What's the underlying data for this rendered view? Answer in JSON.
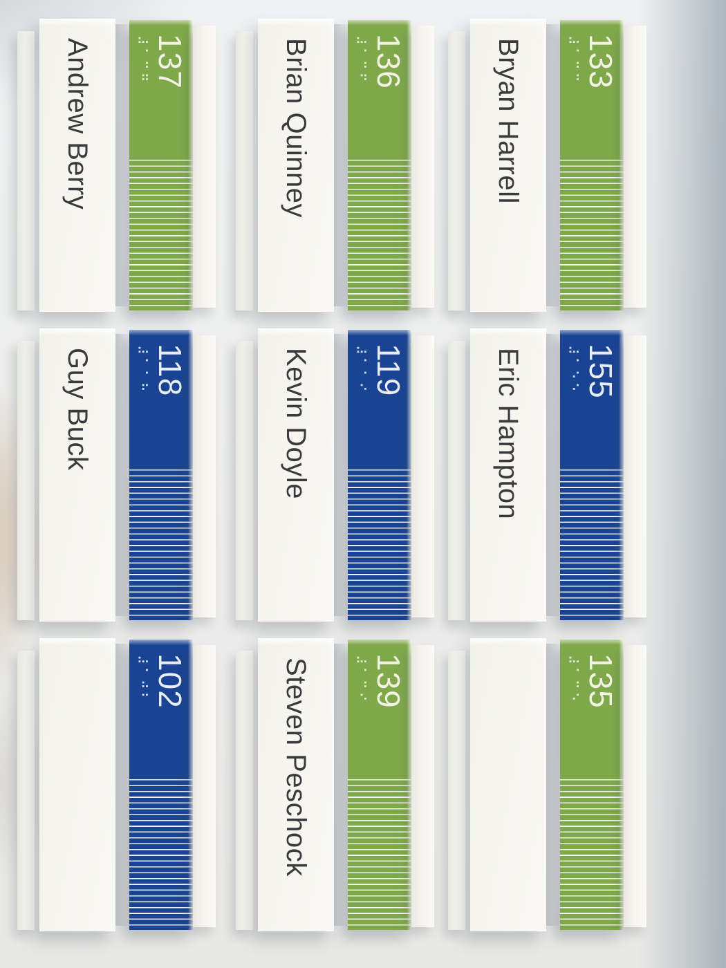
{
  "colors": {
    "stripe_green": "#7fa84b",
    "stripe_blue": "#1a4493",
    "number_text_on_green": "#f3f2e4",
    "number_text_on_blue": "#e9edf4",
    "name_text": "#3a3a3c",
    "plate_white": "#f7f6f1",
    "wall": "#ebecec",
    "wall_shadow_band": "#8a96a3"
  },
  "signs": [
    {
      "name": "Andrew Berry",
      "number": "137",
      "braille": "⠼⠁⠉⠛",
      "color": "green"
    },
    {
      "name": "Brian Quinney",
      "number": "136",
      "braille": "⠼⠁⠉⠋",
      "color": "green"
    },
    {
      "name": "Bryan Harrell",
      "number": "133",
      "braille": "⠼⠁⠉⠉",
      "color": "green"
    },
    {
      "name": "Guy Buck",
      "number": "118",
      "braille": "⠼⠁⠁⠓",
      "color": "blue"
    },
    {
      "name": "Kevin Doyle",
      "number": "119",
      "braille": "⠼⠁⠁⠊",
      "color": "blue"
    },
    {
      "name": "Eric Hampton",
      "number": "155",
      "braille": "⠼⠁⠑⠑",
      "color": "blue"
    },
    {
      "name": "",
      "number": "102",
      "braille": "⠼⠁⠚⠃",
      "color": "blue"
    },
    {
      "name": "Steven Peschock",
      "number": "139",
      "braille": "⠼⠁⠉⠊",
      "color": "green"
    },
    {
      "name": "",
      "number": "135",
      "braille": "⠼⠁⠉⠑",
      "color": "green"
    }
  ]
}
